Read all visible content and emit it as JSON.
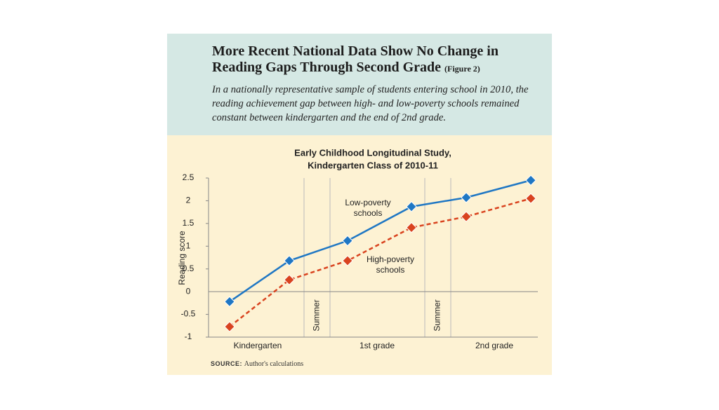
{
  "header": {
    "title": "More Recent National Data Show No Change in Reading Gaps Through Second Grade",
    "figure": "(Figure 2)",
    "description": "In a nationally representative sample of students entering school in 2010, the reading achievement gap between high- and low-poverty schools remained constant between kindergarten and the end of 2nd grade."
  },
  "chart_data": {
    "type": "line",
    "title": [
      "Early Childhood Longitudinal Study,",
      "Kindergarten Class of 2010-11"
    ],
    "y_label": "Reading score",
    "categories": [
      null,
      null,
      null,
      null,
      null,
      null
    ],
    "period_labels": [
      "Kindergarten",
      "1st grade",
      "2nd grade"
    ],
    "gap_labels": [
      "Summer",
      "Summer"
    ],
    "series": [
      {
        "name": "Low-poverty schools",
        "color": "#1f77c4",
        "dash": false,
        "values": [
          -0.22,
          0.68,
          1.12,
          1.87,
          2.07,
          2.45
        ]
      },
      {
        "name": "High-poverty schools",
        "color": "#d9431f",
        "dash": true,
        "values": [
          -0.77,
          0.26,
          0.68,
          1.41,
          1.65,
          2.05
        ]
      }
    ],
    "ylim": [
      -1,
      2.5
    ],
    "yticks": [
      -1,
      -0.5,
      0,
      0.5,
      1,
      1.5,
      2,
      2.5
    ]
  },
  "source": {
    "label": "SOURCE:",
    "text": "Author's calculations"
  }
}
